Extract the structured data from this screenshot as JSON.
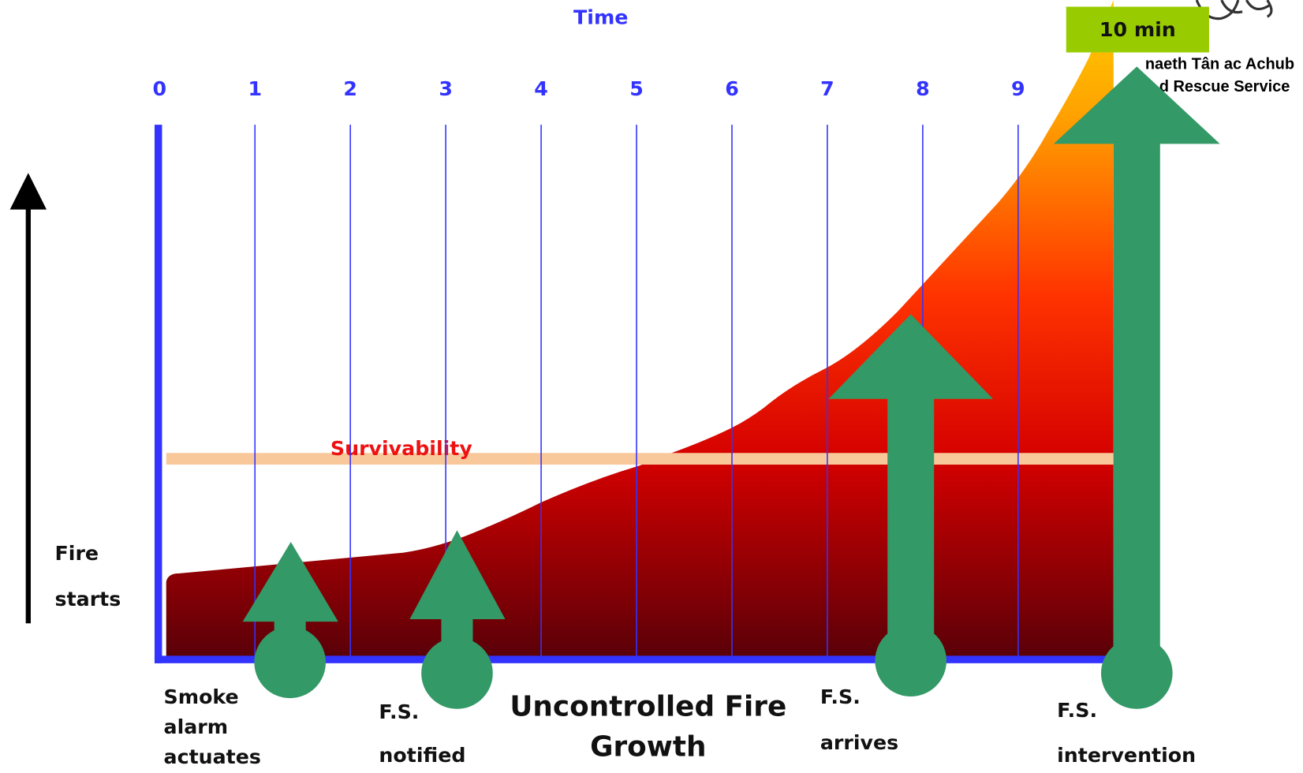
{
  "header": {
    "title": "Time",
    "badge": "10 min",
    "logo_lines": [
      "naeth Tân ac Achub",
      "d Rescue Service"
    ]
  },
  "ticks": [
    0,
    1,
    2,
    3,
    4,
    5,
    6,
    7,
    8,
    9
  ],
  "band_label": "Survivability",
  "y_label": [
    "Fire",
    "starts"
  ],
  "caption": [
    "Uncontrolled Fire",
    "Growth"
  ],
  "events": [
    {
      "lines": [
        "Smoke",
        "alarm",
        "actuates"
      ]
    },
    {
      "lines": [
        "F.S.",
        "notified"
      ]
    },
    {
      "lines": [
        "F.S.",
        "arrives"
      ]
    },
    {
      "lines": [
        "F.S.",
        "intervention"
      ]
    }
  ]
}
